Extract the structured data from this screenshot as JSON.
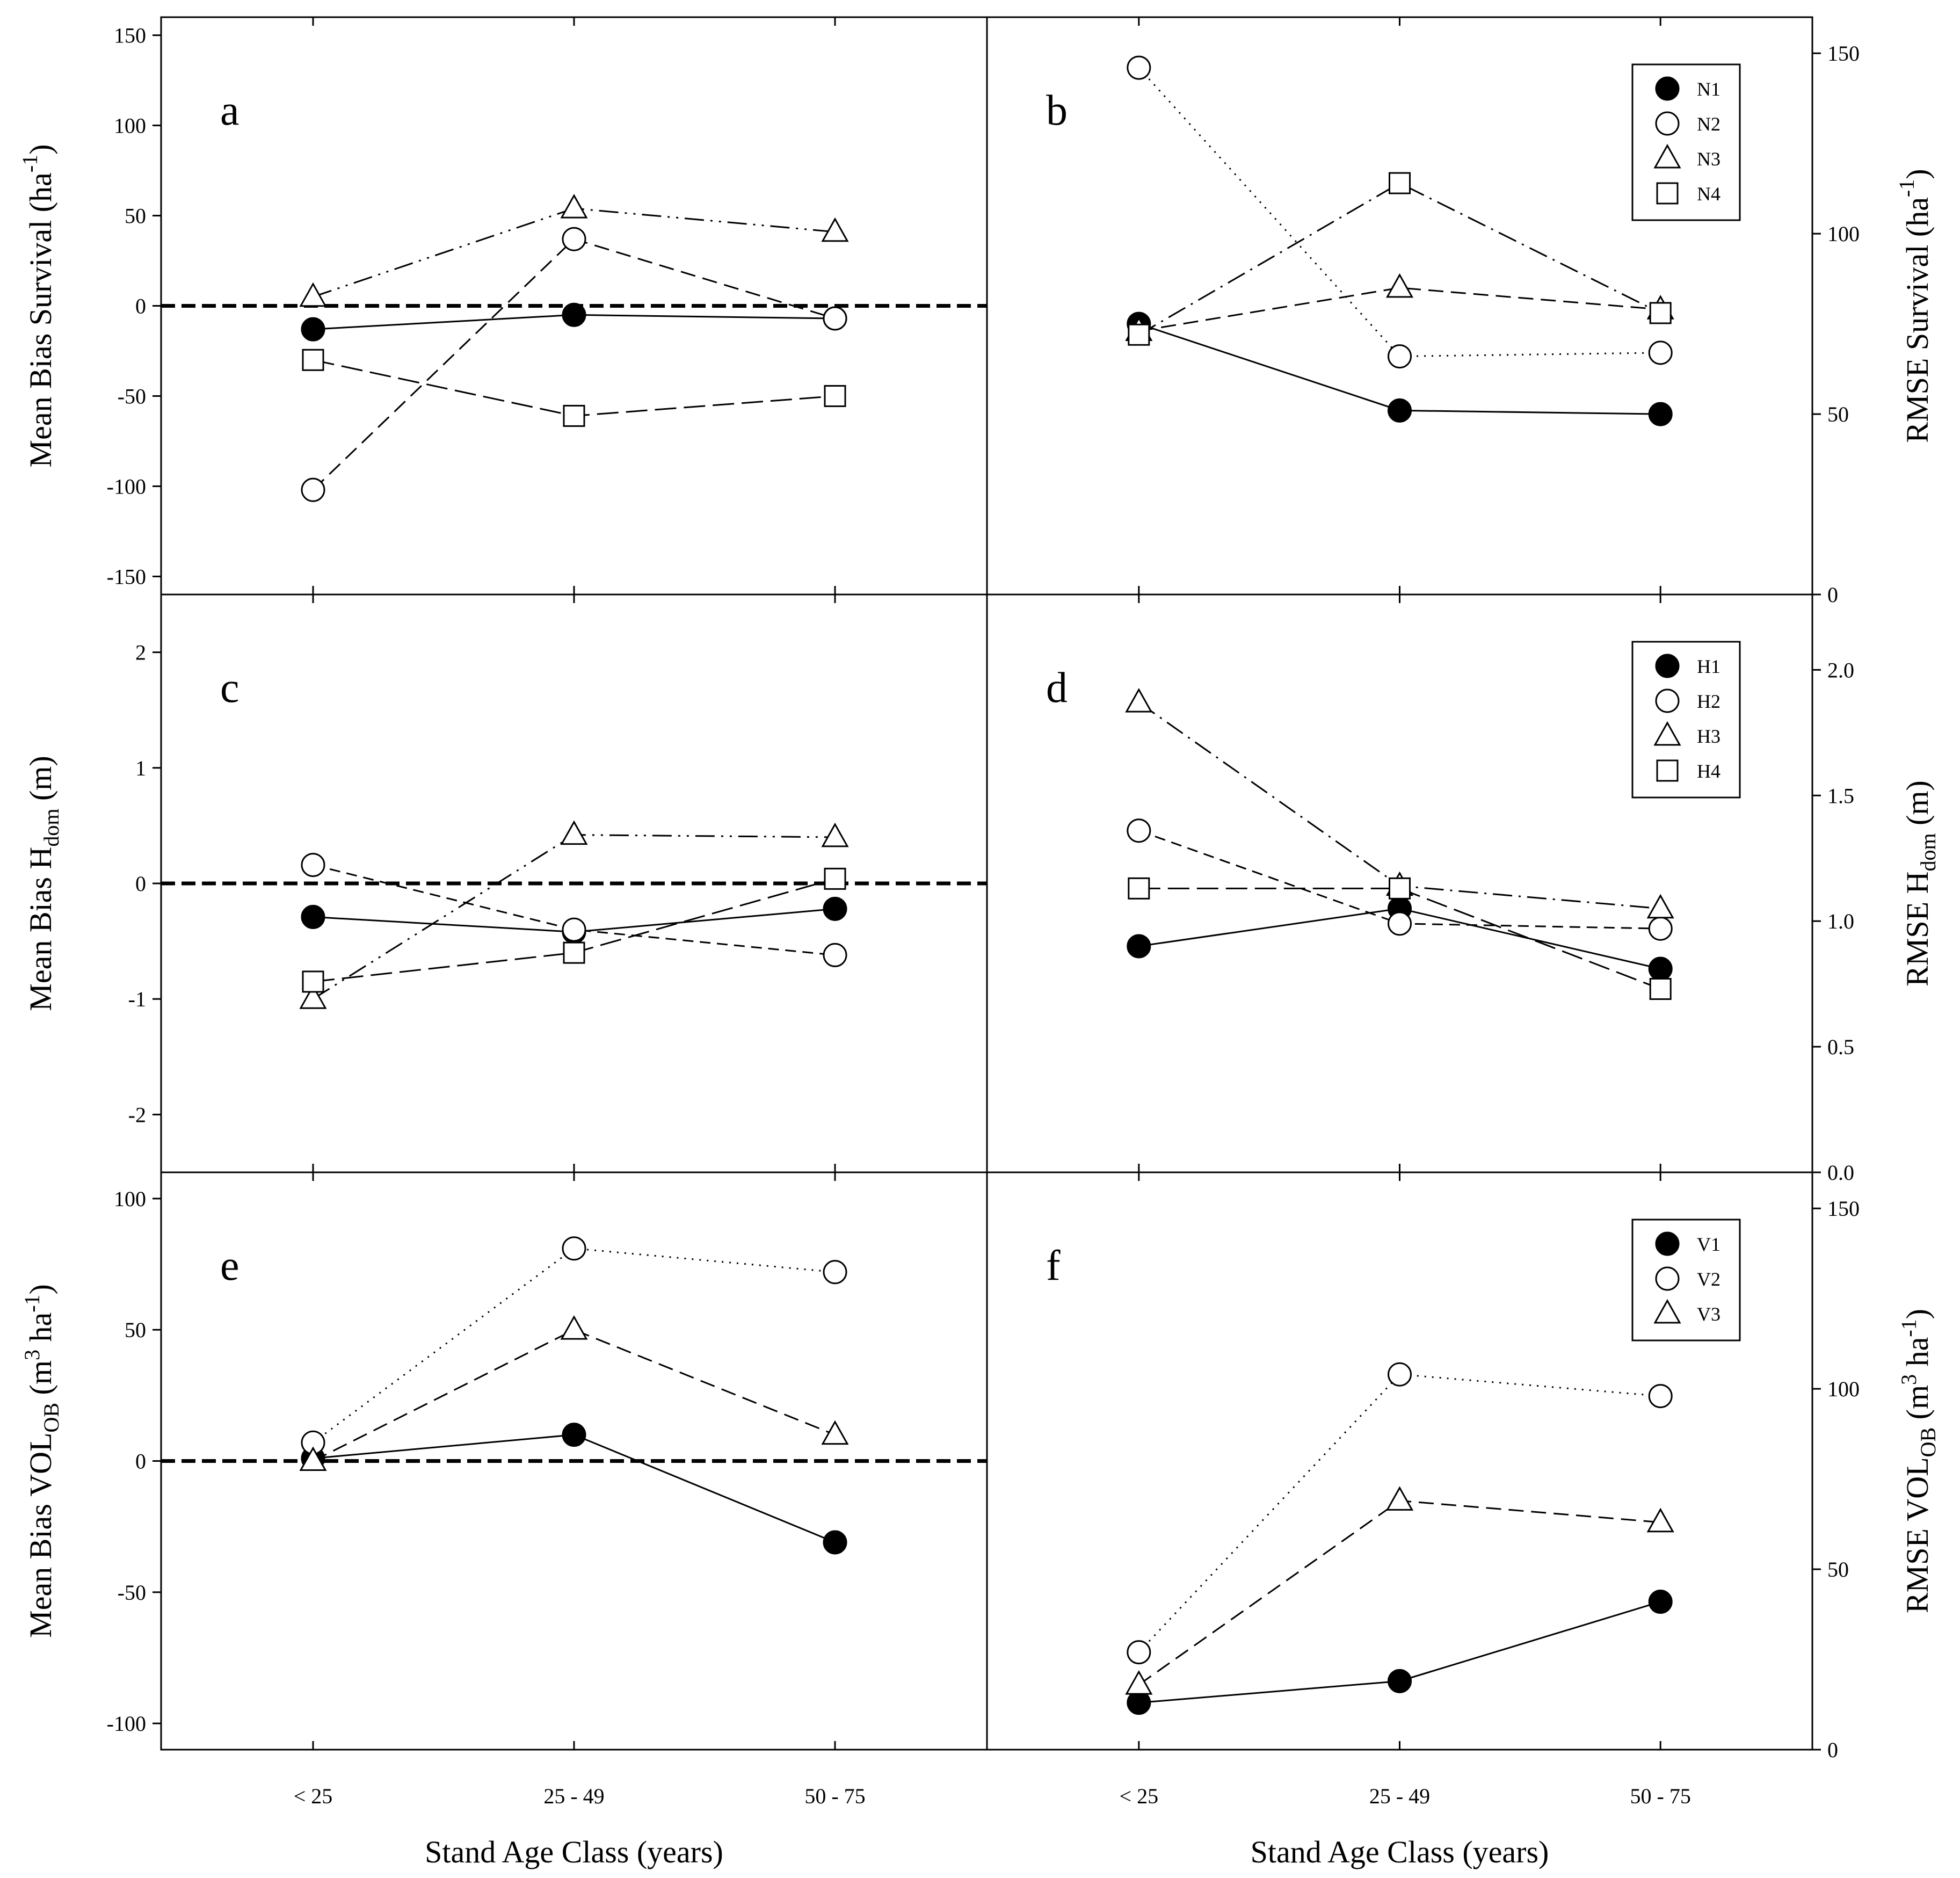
{
  "chart_data": [
    {
      "type": "line",
      "panel": "a",
      "ylabel": "Mean Bias Survival (ha-1)",
      "ylabel_parts": {
        "main": "Mean Bias Survival (ha",
        "sup": "-1",
        "tail": ")"
      },
      "xlabel": "",
      "categories": [
        "< 25",
        "25 - 49",
        "50 - 75"
      ],
      "ylim": [
        -160,
        160
      ],
      "yticks": [
        -150,
        -100,
        -50,
        0,
        50,
        100,
        150
      ],
      "zero_line": true,
      "series": [
        {
          "name": "N1",
          "marker": "circle-filled",
          "dash": "solid",
          "values": [
            -13,
            -5,
            -7
          ]
        },
        {
          "name": "N2",
          "marker": "circle-open",
          "dash": "dashed",
          "values": [
            -102,
            37,
            -7
          ]
        },
        {
          "name": "N3",
          "marker": "triangle-open",
          "dash": "dashdotdot",
          "values": [
            5,
            54,
            41
          ]
        },
        {
          "name": "N4",
          "marker": "square-open",
          "dash": "longdash",
          "values": [
            -30,
            -61,
            -50
          ]
        }
      ]
    },
    {
      "type": "line",
      "panel": "b",
      "ylabel": "RMSE Survival (ha-1)",
      "ylabel_parts": {
        "main": "RMSE Survival (ha",
        "sup": "-1",
        "tail": ")"
      },
      "xlabel": "",
      "categories": [
        "< 25",
        "25 - 49",
        "50 - 75"
      ],
      "ylim": [
        0,
        160
      ],
      "yticks": [
        0,
        50,
        100,
        150
      ],
      "legend": [
        "N1",
        "N2",
        "N3",
        "N4"
      ],
      "series": [
        {
          "name": "N1",
          "marker": "circle-filled",
          "dash": "solid",
          "values": [
            75,
            51,
            50
          ]
        },
        {
          "name": "N2",
          "marker": "circle-open",
          "dash": "dotted",
          "values": [
            146,
            66,
            67
          ]
        },
        {
          "name": "N3",
          "marker": "triangle-open",
          "dash": "dashed",
          "values": [
            73,
            85,
            79
          ]
        },
        {
          "name": "N4",
          "marker": "square-open",
          "dash": "dashdot",
          "values": [
            72,
            114,
            78
          ]
        }
      ]
    },
    {
      "type": "line",
      "panel": "c",
      "ylabel": "Mean Bias Hdom (m)",
      "ylabel_parts": {
        "main": "Mean Bias H",
        "sub": "dom",
        "tail": " (m)"
      },
      "xlabel": "",
      "categories": [
        "< 25",
        "25 - 49",
        "50 - 75"
      ],
      "ylim": [
        -2.5,
        2.5
      ],
      "yticks": [
        -2,
        -1,
        0,
        1,
        2
      ],
      "zero_line": true,
      "series": [
        {
          "name": "H1",
          "marker": "circle-filled",
          "dash": "solid",
          "values": [
            -0.29,
            -0.42,
            -0.22
          ]
        },
        {
          "name": "H2",
          "marker": "circle-open",
          "dash": "shortdash",
          "values": [
            0.16,
            -0.4,
            -0.62
          ]
        },
        {
          "name": "H3",
          "marker": "triangle-open",
          "dash": "dashdotdot",
          "values": [
            -1.0,
            0.42,
            0.4
          ]
        },
        {
          "name": "H4",
          "marker": "square-open",
          "dash": "longdash",
          "values": [
            -0.85,
            -0.6,
            0.04
          ]
        }
      ]
    },
    {
      "type": "line",
      "panel": "d",
      "ylabel": "RMSE Hdom (m)",
      "ylabel_parts": {
        "main": "RMSE H",
        "sub": "dom",
        "tail": " (m)"
      },
      "xlabel": "",
      "categories": [
        "< 25",
        "25 - 49",
        "50 - 75"
      ],
      "ylim": [
        0,
        2.3
      ],
      "yticks": [
        0.0,
        0.5,
        1.0,
        1.5,
        2.0
      ],
      "yticklabels": [
        "0.0",
        "0.5",
        "1.0",
        "1.5",
        "2.0"
      ],
      "legend": [
        "H1",
        "H2",
        "H3",
        "H4"
      ],
      "series": [
        {
          "name": "H1",
          "marker": "circle-filled",
          "dash": "solid",
          "values": [
            0.9,
            1.05,
            0.81
          ]
        },
        {
          "name": "H2",
          "marker": "circle-open",
          "dash": "shortdash",
          "values": [
            1.36,
            0.99,
            0.97
          ]
        },
        {
          "name": "H3",
          "marker": "triangle-open",
          "dash": "dashdot",
          "values": [
            1.87,
            1.14,
            1.05
          ]
        },
        {
          "name": "H4",
          "marker": "square-open",
          "dash": "longdash",
          "values": [
            1.13,
            1.13,
            0.73
          ]
        }
      ]
    },
    {
      "type": "line",
      "panel": "e",
      "ylabel": "Mean Bias VOLOB (m3 ha-1)",
      "ylabel_parts": {
        "main": "Mean Bias VOL",
        "sub": "OB",
        "mid": " (m",
        "sup": "3",
        "mid2": " ha",
        "sup2": "-1",
        "tail": ")"
      },
      "xlabel": "Stand Age Class (years)",
      "categories": [
        "< 25",
        "25 - 49",
        "50 - 75"
      ],
      "ylim": [
        -110,
        110
      ],
      "yticks": [
        -100,
        -50,
        0,
        50,
        100
      ],
      "zero_line": true,
      "series": [
        {
          "name": "V1",
          "marker": "circle-filled",
          "dash": "solid",
          "values": [
            1,
            10,
            -31
          ]
        },
        {
          "name": "V2",
          "marker": "circle-open",
          "dash": "dotted",
          "values": [
            7,
            81,
            72
          ]
        },
        {
          "name": "V3",
          "marker": "triangle-open",
          "dash": "dashed",
          "values": [
            0,
            50,
            10
          ]
        }
      ]
    },
    {
      "type": "line",
      "panel": "f",
      "ylabel": "RMSE VOLOB (m3 ha-1)",
      "ylabel_parts": {
        "main": "RMSE VOL",
        "sub": "OB",
        "mid": " (m",
        "sup": "3",
        "mid2": " ha",
        "sup2": "-1",
        "tail": ")"
      },
      "xlabel": "Stand Age Class (years)",
      "categories": [
        "< 25",
        "25 - 49",
        "50 - 75"
      ],
      "ylim": [
        0,
        160
      ],
      "yticks": [
        0,
        50,
        100,
        150
      ],
      "legend": [
        "V1",
        "V2",
        "V3"
      ],
      "series": [
        {
          "name": "V1",
          "marker": "circle-filled",
          "dash": "solid",
          "values": [
            13,
            19,
            41
          ]
        },
        {
          "name": "V2",
          "marker": "circle-open",
          "dash": "dotted",
          "values": [
            27,
            104,
            98
          ]
        },
        {
          "name": "V3",
          "marker": "triangle-open",
          "dash": "dashed",
          "values": [
            18,
            69,
            63
          ]
        }
      ]
    }
  ]
}
